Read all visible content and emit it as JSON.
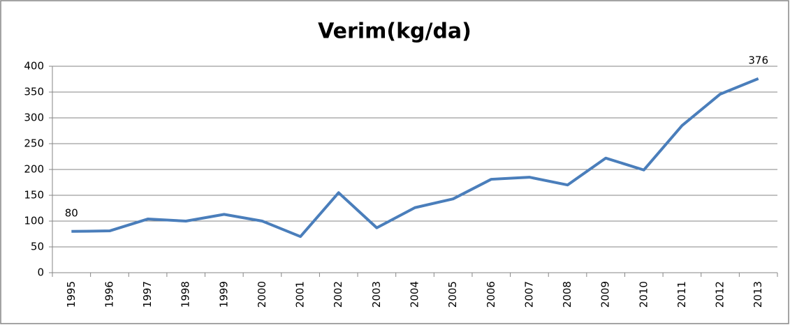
{
  "chart_data": {
    "type": "line",
    "title": "Verim(kg/da)",
    "categories": [
      "1995",
      "1996",
      "1997",
      "1998",
      "1999",
      "2000",
      "2001",
      "2002",
      "2003",
      "2004",
      "2005",
      "2006",
      "2007",
      "2008",
      "2009",
      "2010",
      "2011",
      "2012",
      "2013"
    ],
    "series": [
      {
        "name": "Verim(kg/da)",
        "color": "#4a7ebb",
        "values": [
          80,
          81,
          104,
          100,
          113,
          100,
          70,
          155,
          87,
          126,
          143,
          181,
          185,
          170,
          222,
          199,
          285,
          346,
          376
        ],
        "value_labels": [
          "80",
          null,
          null,
          null,
          null,
          null,
          null,
          null,
          null,
          null,
          null,
          null,
          null,
          null,
          null,
          null,
          null,
          null,
          "376"
        ]
      }
    ],
    "ylim": [
      0,
      400
    ],
    "yticks": [
      0,
      50,
      100,
      150,
      200,
      250,
      300,
      350,
      400
    ],
    "grid": true
  }
}
